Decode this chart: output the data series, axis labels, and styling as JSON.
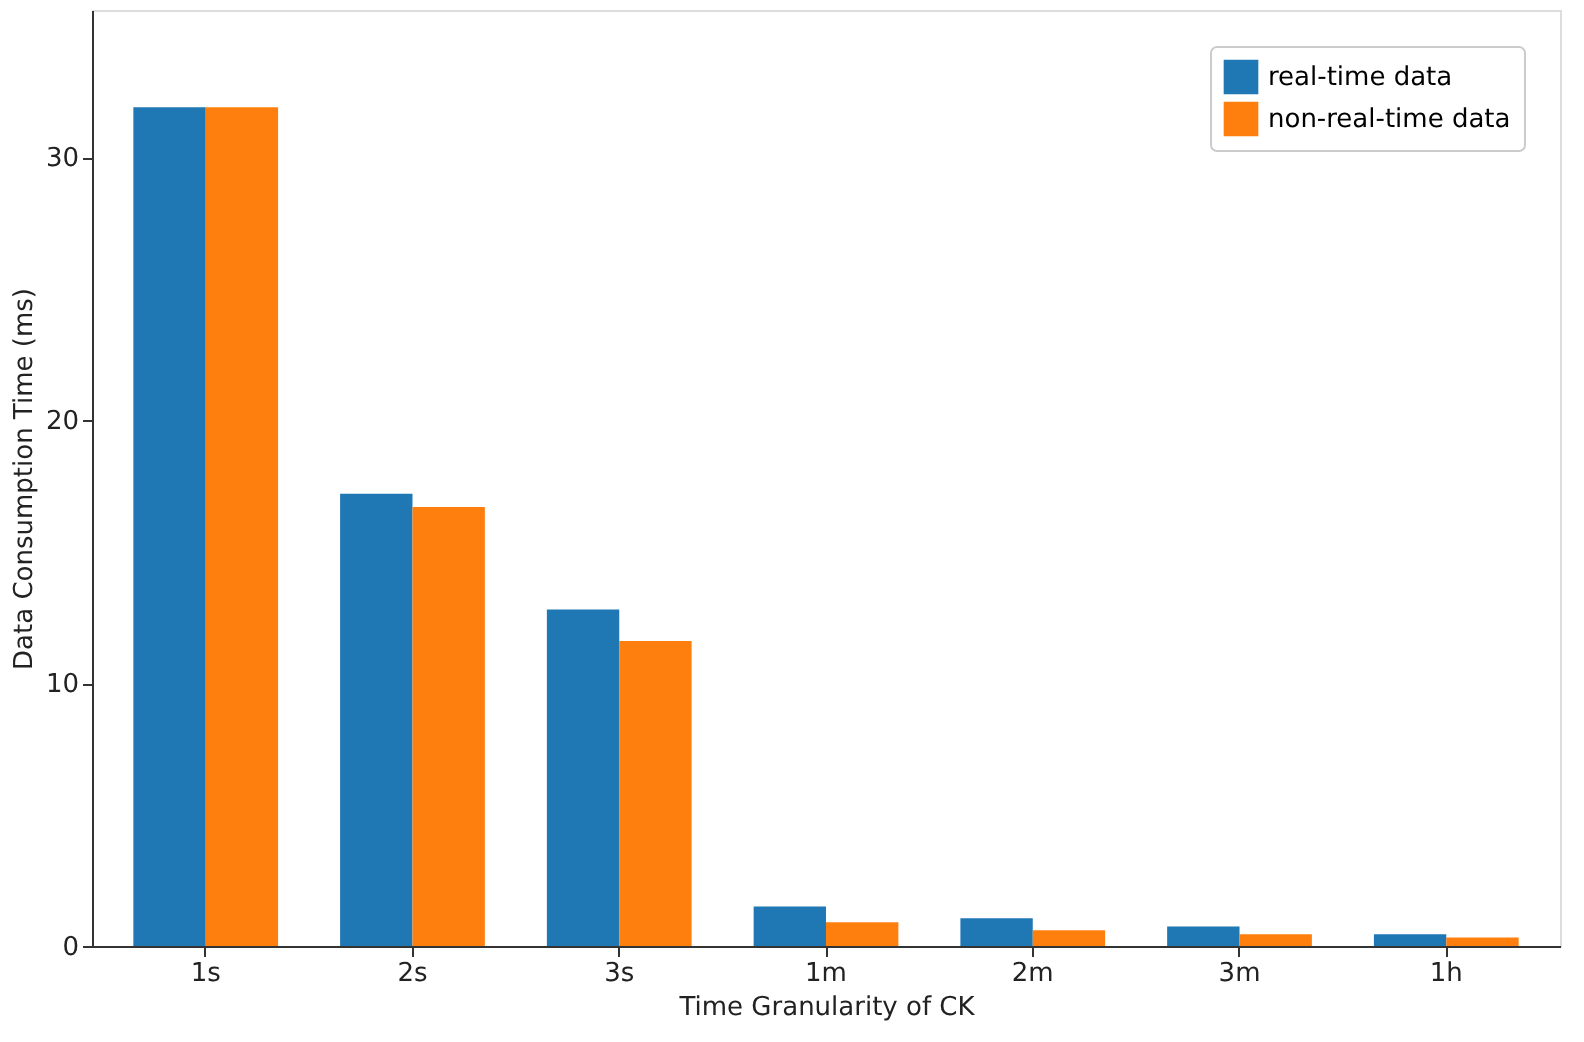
{
  "chart_data": {
    "type": "bar",
    "xlabel": "Time Granularity of CK",
    "ylabel": "Data Consumption Time (ms)",
    "categories": [
      "1s",
      "2s",
      "3s",
      "1m",
      "2m",
      "3m",
      "1h"
    ],
    "series": [
      {
        "name": "real-time data",
        "color": "#1f77b4",
        "values": [
          31.9,
          17.2,
          12.8,
          1.5,
          1.06,
          0.74,
          0.45
        ]
      },
      {
        "name": "non-real-time data",
        "color": "#ff7f0e",
        "values": [
          31.9,
          16.7,
          11.6,
          0.9,
          0.6,
          0.45,
          0.32
        ]
      }
    ],
    "ylim": [
      0,
      35.6
    ],
    "yticks": [
      0,
      10,
      20,
      30
    ],
    "grid": false,
    "legend": "top right"
  }
}
